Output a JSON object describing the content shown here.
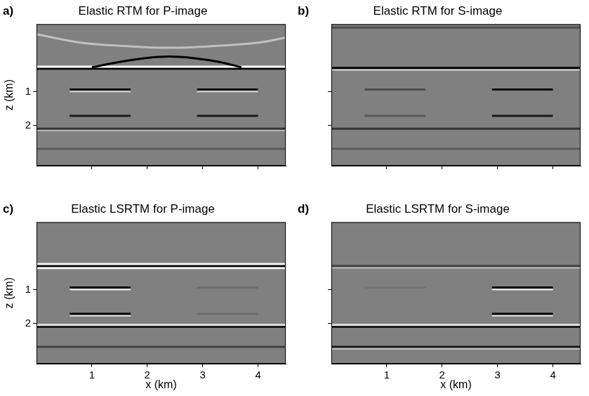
{
  "chart_data": [
    {
      "type": "line",
      "label": "a)",
      "title": "Elastic RTM for P-image",
      "ylabel": "z (km)",
      "xlim": [
        0,
        4.5
      ],
      "ylim": [
        3.2,
        -1.0
      ],
      "xticks": [
        1,
        2,
        3,
        4
      ],
      "yticks": [
        1,
        2
      ],
      "grid": false,
      "tick_labels": "y",
      "reflectors": [
        {
          "x": [
            0,
            0.8,
            1.6,
            2.4,
            3.2,
            4.0,
            4.5
          ],
          "z": [
            -0.7,
            -0.45,
            -0.35,
            -0.3,
            -0.35,
            -0.45,
            -0.6
          ],
          "amplitude": 0.5
        },
        {
          "x": [
            1.0,
            1.5,
            2.0,
            2.4,
            2.8,
            3.3,
            3.7
          ],
          "z": [
            0.28,
            0.12,
            0.0,
            -0.04,
            0.0,
            0.12,
            0.28
          ],
          "amplitude": -1
        },
        {
          "x": [
            0,
            4.5
          ],
          "z": [
            0.26,
            0.26
          ],
          "amplitude": 1
        },
        {
          "x": [
            0,
            4.5
          ],
          "z": [
            0.32,
            0.32
          ],
          "amplitude": -1
        },
        {
          "x": [
            0.6,
            1.7
          ],
          "z": [
            0.94,
            0.94
          ],
          "amplitude": -0.9
        },
        {
          "x": [
            0.6,
            1.7
          ],
          "z": [
            0.99,
            0.99
          ],
          "amplitude": 0.6
        },
        {
          "x": [
            2.9,
            4.0
          ],
          "z": [
            0.94,
            0.94
          ],
          "amplitude": -0.9
        },
        {
          "x": [
            2.9,
            4.0
          ],
          "z": [
            0.99,
            0.99
          ],
          "amplitude": 0.6
        },
        {
          "x": [
            0.6,
            1.7
          ],
          "z": [
            1.72,
            1.72
          ],
          "amplitude": -0.8
        },
        {
          "x": [
            2.9,
            4.0
          ],
          "z": [
            1.72,
            1.72
          ],
          "amplitude": -0.8
        },
        {
          "x": [
            0,
            4.5
          ],
          "z": [
            2.1,
            2.1
          ],
          "amplitude": -0.6
        },
        {
          "x": [
            0,
            4.5
          ],
          "z": [
            2.15,
            2.15
          ],
          "amplitude": 0.4
        },
        {
          "x": [
            0,
            4.5
          ],
          "z": [
            2.7,
            2.7
          ],
          "amplitude": -0.3
        }
      ]
    },
    {
      "type": "line",
      "label": "b)",
      "title": "Elastic RTM for S-image",
      "xlim": [
        0,
        4.5
      ],
      "ylim": [
        3.2,
        -1.0
      ],
      "xticks": [
        1,
        2,
        3,
        4
      ],
      "yticks": [
        1,
        2
      ],
      "grid": false,
      "tick_labels": false,
      "reflectors": [
        {
          "x": [
            0,
            4.5
          ],
          "z": [
            -0.9,
            -0.9
          ],
          "amplitude": -0.4
        },
        {
          "x": [
            0,
            4.5
          ],
          "z": [
            0.3,
            0.3
          ],
          "amplitude": -1
        },
        {
          "x": [
            0,
            4.5
          ],
          "z": [
            0.35,
            0.35
          ],
          "amplitude": 0.6
        },
        {
          "x": [
            0.6,
            1.7
          ],
          "z": [
            0.94,
            0.94
          ],
          "amplitude": -0.4
        },
        {
          "x": [
            2.9,
            4.0
          ],
          "z": [
            0.94,
            0.94
          ],
          "amplitude": -0.9
        },
        {
          "x": [
            0.6,
            1.7
          ],
          "z": [
            1.72,
            1.72
          ],
          "amplitude": -0.3
        },
        {
          "x": [
            2.9,
            4.0
          ],
          "z": [
            1.72,
            1.72
          ],
          "amplitude": -0.8
        },
        {
          "x": [
            0,
            4.5
          ],
          "z": [
            2.1,
            2.1
          ],
          "amplitude": -0.6
        },
        {
          "x": [
            0,
            4.5
          ],
          "z": [
            2.7,
            2.7
          ],
          "amplitude": -0.3
        }
      ]
    },
    {
      "type": "line",
      "label": "c)",
      "title": "Elastic LSRTM for P-image",
      "xlabel": "x (km)",
      "ylabel": "z (km)",
      "xlim": [
        0,
        4.5
      ],
      "ylim": [
        3.2,
        -1.0
      ],
      "xticks": [
        1,
        2,
        3,
        4
      ],
      "yticks": [
        1,
        2
      ],
      "grid": false,
      "tick_labels": true,
      "reflectors": [
        {
          "x": [
            0,
            4.5
          ],
          "z": [
            0.24,
            0.24
          ],
          "amplitude": 0.9
        },
        {
          "x": [
            0,
            4.5
          ],
          "z": [
            0.3,
            0.3
          ],
          "amplitude": -1
        },
        {
          "x": [
            0,
            4.5
          ],
          "z": [
            0.36,
            0.36
          ],
          "amplitude": 0.9
        },
        {
          "x": [
            0.6,
            1.7
          ],
          "z": [
            0.94,
            0.94
          ],
          "amplitude": -1
        },
        {
          "x": [
            0.6,
            1.7
          ],
          "z": [
            0.99,
            0.99
          ],
          "amplitude": 0.8
        },
        {
          "x": [
            2.9,
            4.0
          ],
          "z": [
            0.94,
            0.94
          ],
          "amplitude": -0.15
        },
        {
          "x": [
            0.6,
            1.7
          ],
          "z": [
            1.72,
            1.72
          ],
          "amplitude": -1
        },
        {
          "x": [
            0.6,
            1.7
          ],
          "z": [
            1.77,
            1.77
          ],
          "amplitude": 0.8
        },
        {
          "x": [
            2.9,
            4.0
          ],
          "z": [
            1.72,
            1.72
          ],
          "amplitude": -0.15
        },
        {
          "x": [
            0,
            4.5
          ],
          "z": [
            2.05,
            2.05
          ],
          "amplitude": 0.8
        },
        {
          "x": [
            0,
            4.5
          ],
          "z": [
            2.1,
            2.1
          ],
          "amplitude": -1
        },
        {
          "x": [
            0,
            4.5
          ],
          "z": [
            2.7,
            2.7
          ],
          "amplitude": -0.5
        }
      ]
    },
    {
      "type": "line",
      "label": "d)",
      "title": "Elastic LSRTM for S-image",
      "xlabel": "x (km)",
      "xlim": [
        0,
        4.5
      ],
      "ylim": [
        3.2,
        -1.0
      ],
      "xticks": [
        1,
        2,
        3,
        4
      ],
      "yticks": [
        1,
        2
      ],
      "grid": false,
      "tick_labels": "x",
      "reflectors": [
        {
          "x": [
            0,
            4.5
          ],
          "z": [
            0.3,
            0.3
          ],
          "amplitude": -0.5
        },
        {
          "x": [
            0,
            4.5
          ],
          "z": [
            0.35,
            0.35
          ],
          "amplitude": 0.4
        },
        {
          "x": [
            0.6,
            1.7
          ],
          "z": [
            0.94,
            0.94
          ],
          "amplitude": -0.1
        },
        {
          "x": [
            2.9,
            4.0
          ],
          "z": [
            0.94,
            0.94
          ],
          "amplitude": -1
        },
        {
          "x": [
            2.9,
            4.0
          ],
          "z": [
            0.99,
            0.99
          ],
          "amplitude": 0.8
        },
        {
          "x": [
            2.9,
            4.0
          ],
          "z": [
            1.72,
            1.72
          ],
          "amplitude": -1
        },
        {
          "x": [
            2.9,
            4.0
          ],
          "z": [
            1.77,
            1.77
          ],
          "amplitude": 0.8
        },
        {
          "x": [
            0,
            4.5
          ],
          "z": [
            2.05,
            2.05
          ],
          "amplitude": 0.8
        },
        {
          "x": [
            0,
            4.5
          ],
          "z": [
            2.1,
            2.1
          ],
          "amplitude": -1
        },
        {
          "x": [
            0,
            4.5
          ],
          "z": [
            2.7,
            2.7
          ],
          "amplitude": -0.8
        },
        {
          "x": [
            0,
            4.5
          ],
          "z": [
            2.75,
            2.75
          ],
          "amplitude": 0.5
        }
      ]
    }
  ]
}
